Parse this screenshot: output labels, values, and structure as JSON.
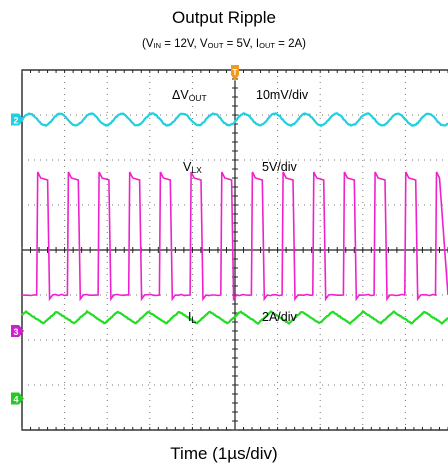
{
  "chart_data": {
    "type": "line",
    "title": "Output Ripple",
    "subtitle": {
      "prefix": "(V",
      "vin_sub": "IN",
      "vin_val": " = 12V, V",
      "vout_sub": "OUT",
      "vout_val": " = 5V, I",
      "iout_sub": "OUT",
      "iout_val": " = 2A)"
    },
    "xlabel": "Time (1µs/div)",
    "ylabel": "",
    "grid": true,
    "x_divisions": 10,
    "y_divisions": 8,
    "trigger_marker": "T",
    "series": [
      {
        "id": "vout",
        "label_main": "ΔV",
        "label_sub": "OUT",
        "scale": "10mV/div",
        "channel": "2",
        "color": "#20d0e0",
        "kind": "sine",
        "center_div": 1.1,
        "amp_div": 0.13,
        "period_div": 0.72
      },
      {
        "id": "vlx",
        "label_main": "V",
        "label_sub": "LX",
        "scale": "5V/div",
        "channel": "3",
        "color": "#ee22cc",
        "kind": "square",
        "high_div": 2.4,
        "low_div": 5.0,
        "period_div": 0.72,
        "duty": 0.42
      },
      {
        "id": "il",
        "label_main": "I",
        "label_sub": "L",
        "scale": "2A/div",
        "channel": "4",
        "color": "#22dd22",
        "kind": "triangle",
        "center_div": 5.5,
        "amp_div": 0.13,
        "period_div": 0.72,
        "duty": 0.42
      }
    ],
    "channel_markers": [
      {
        "channel": "2",
        "color": "#20d0e0"
      },
      {
        "channel": "3",
        "color": "#cc22cc"
      },
      {
        "channel": "4",
        "color": "#22cc22"
      }
    ]
  }
}
